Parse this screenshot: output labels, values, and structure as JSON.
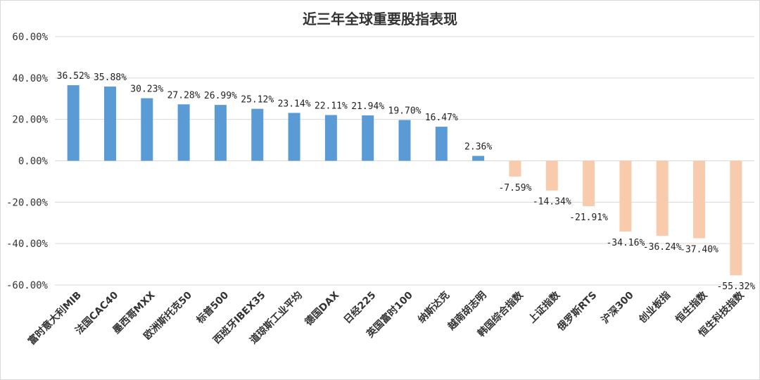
{
  "chart_data": {
    "type": "bar",
    "title": "近三年全球重要股指表现",
    "xlabel": "",
    "ylabel": "",
    "ylim": [
      -60,
      60
    ],
    "yticks": [
      60,
      40,
      20,
      0,
      -20,
      -40,
      -60
    ],
    "ytick_labels": [
      "60.00%",
      "40.00%",
      "20.00%",
      "0.00%",
      "-20.00%",
      "-40.00%",
      "-60.00%"
    ],
    "grid": true,
    "legend": "none",
    "colors": {
      "positive": "#5b9bd5",
      "negative": "#f8cbad",
      "grid": "#d9d9d9"
    },
    "categories": [
      "富时意大利MIB",
      "法国CAC40",
      "墨西哥MXX",
      "欧洲斯托克50",
      "标普500",
      "西班牙IBEX35",
      "道琼斯工业平均",
      "德国DAX",
      "日经225",
      "英国富时100",
      "纳斯达克",
      "越南胡志明",
      "韩国综合指数",
      "上证指数",
      "俄罗斯RTS",
      "沪深300",
      "创业板指",
      "恒生指数",
      "恒生科技指数"
    ],
    "values": [
      36.52,
      35.88,
      30.23,
      27.28,
      26.99,
      25.12,
      23.14,
      22.11,
      21.94,
      19.7,
      16.47,
      2.36,
      -7.59,
      -14.34,
      -21.91,
      -34.16,
      -36.24,
      -37.4,
      -55.32
    ],
    "value_labels": [
      "36.52%",
      "35.88%",
      "30.23%",
      "27.28%",
      "26.99%",
      "25.12%",
      "23.14%",
      "22.11%",
      "21.94%",
      "19.70%",
      "16.47%",
      "2.36%",
      "-7.59%",
      "-14.34%",
      "-21.91%",
      "-34.16%",
      "-36.24%",
      "-37.40%",
      "-55.32%"
    ]
  }
}
